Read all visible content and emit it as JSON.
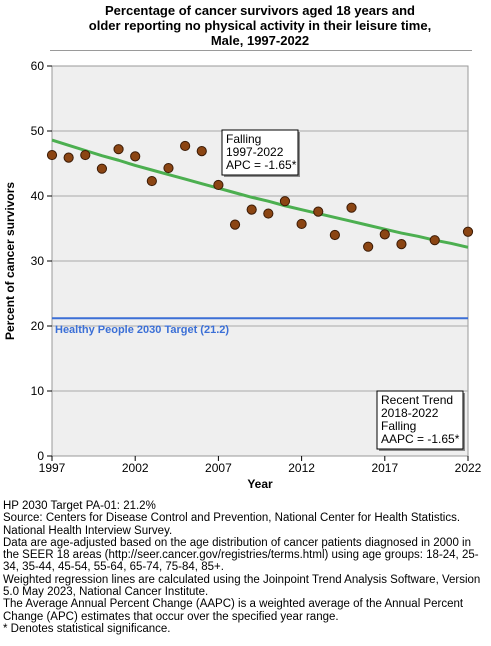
{
  "title_lines": [
    "Percentage of cancer survivors aged 18 years and",
    "older reporting no physical activity in their leisure time,",
    "Male,  1997-2022"
  ],
  "chart_data": {
    "type": "scatter",
    "xlabel": "Year",
    "ylabel": "Percent of cancer survivors",
    "xlim": [
      1997,
      2022
    ],
    "ylim": [
      0,
      60
    ],
    "x_ticks": [
      1997,
      2002,
      2007,
      2012,
      2017,
      2022
    ],
    "y_ticks": [
      0,
      10,
      20,
      30,
      40,
      50,
      60
    ],
    "grid": true,
    "points": [
      {
        "x": 1997,
        "y": 46.3
      },
      {
        "x": 1998,
        "y": 45.9
      },
      {
        "x": 1999,
        "y": 46.3
      },
      {
        "x": 2000,
        "y": 44.2
      },
      {
        "x": 2001,
        "y": 47.2
      },
      {
        "x": 2002,
        "y": 46.1
      },
      {
        "x": 2003,
        "y": 42.3
      },
      {
        "x": 2004,
        "y": 44.3
      },
      {
        "x": 2005,
        "y": 47.7
      },
      {
        "x": 2006,
        "y": 46.9
      },
      {
        "x": 2007,
        "y": 41.7
      },
      {
        "x": 2008,
        "y": 35.6
      },
      {
        "x": 2009,
        "y": 37.9
      },
      {
        "x": 2010,
        "y": 37.3
      },
      {
        "x": 2011,
        "y": 39.2
      },
      {
        "x": 2012,
        "y": 35.7
      },
      {
        "x": 2013,
        "y": 37.6
      },
      {
        "x": 2014,
        "y": 34.0
      },
      {
        "x": 2015,
        "y": 38.2
      },
      {
        "x": 2016,
        "y": 32.2
      },
      {
        "x": 2017,
        "y": 34.1
      },
      {
        "x": 2018,
        "y": 32.6
      },
      {
        "x": 2020,
        "y": 33.2
      },
      {
        "x": 2022,
        "y": 34.5
      }
    ],
    "trend_line": {
      "x": [
        1997,
        1998,
        1999,
        2000,
        2001,
        2002,
        2003,
        2004,
        2005,
        2006,
        2007,
        2008,
        2009,
        2010,
        2011,
        2012,
        2013,
        2014,
        2015,
        2016,
        2017,
        2018,
        2019,
        2020,
        2021,
        2022
      ],
      "y": [
        48.6,
        47.8,
        47.0,
        46.2,
        45.5,
        44.7,
        44.0,
        43.3,
        42.6,
        41.9,
        41.2,
        40.5,
        39.8,
        39.2,
        38.5,
        37.9,
        37.3,
        36.7,
        36.1,
        35.5,
        34.9,
        34.3,
        33.8,
        33.2,
        32.7,
        32.1
      ]
    },
    "target": {
      "value": 21.2,
      "label": "Healthy People 2030 Target (21.2)"
    },
    "annotations": [
      {
        "lines": [
          "Falling",
          "1997-2022",
          "APC = -1.65*"
        ]
      },
      {
        "lines": [
          "Recent Trend",
          "2018-2022",
          "Falling",
          "AAPC = -1.65*"
        ]
      }
    ]
  },
  "colors": {
    "plot_background": "#efefef",
    "grid": "#a8a8a8",
    "trend_line": "#4caf50",
    "point_fill": "#8b4513",
    "target_line": "#3b6fd6"
  },
  "notes": [
    "HP 2030 Target PA-01: 21.2%",
    "Source: Centers for Disease Control and Prevention, National Center for Health Statistics. National Health Interview Survey.",
    "Data are age-adjusted based on the age distribution of cancer patients diagnosed in 2000 in the SEER 18 areas (http://seer.cancer.gov/registries/terms.html) using age groups: 18-24, 25-34, 35-44, 45-54, 55-64, 65-74, 75-84, 85+.",
    "Weighted regression lines are calculated using the Joinpoint Trend Analysis Software, Version 5.0 May 2023, National Cancer Institute.",
    "The Average Annual Percent Change (AAPC) is a weighted average of the Annual Percent Change (APC) estimates that occur over the specified year range.",
    "* Denotes statistical significance."
  ]
}
